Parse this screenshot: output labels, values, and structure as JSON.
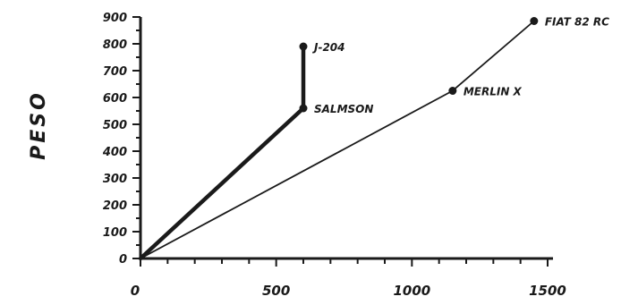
{
  "chart_data": {
    "type": "line",
    "title": "",
    "xlabel": "",
    "ylabel": "PESO",
    "xlim": [
      0,
      1500
    ],
    "ylim": [
      0,
      900
    ],
    "x_ticks": [
      0,
      500,
      1000,
      1500
    ],
    "y_ticks": [
      0,
      100,
      200,
      300,
      400,
      500,
      600,
      700,
      800,
      900
    ],
    "grid": false,
    "legend": "none",
    "colors": {
      "ink": "#1a1a1a",
      "background": "#ffffff"
    },
    "points": [
      {
        "label": "J-204",
        "x": 600,
        "y": 790
      },
      {
        "label": "SALMSON",
        "x": 600,
        "y": 560
      },
      {
        "label": "MERLIN X",
        "x": 1150,
        "y": 625
      },
      {
        "label": "FIAT 82 RC",
        "x": 1450,
        "y": 885
      }
    ],
    "series": [
      {
        "points": [
          [
            0,
            0
          ],
          [
            600,
            560
          ],
          [
            600,
            790
          ]
        ],
        "style": "thick"
      },
      {
        "points": [
          [
            0,
            0
          ],
          [
            1150,
            625
          ],
          [
            1450,
            885
          ]
        ],
        "style": "thin"
      }
    ]
  }
}
